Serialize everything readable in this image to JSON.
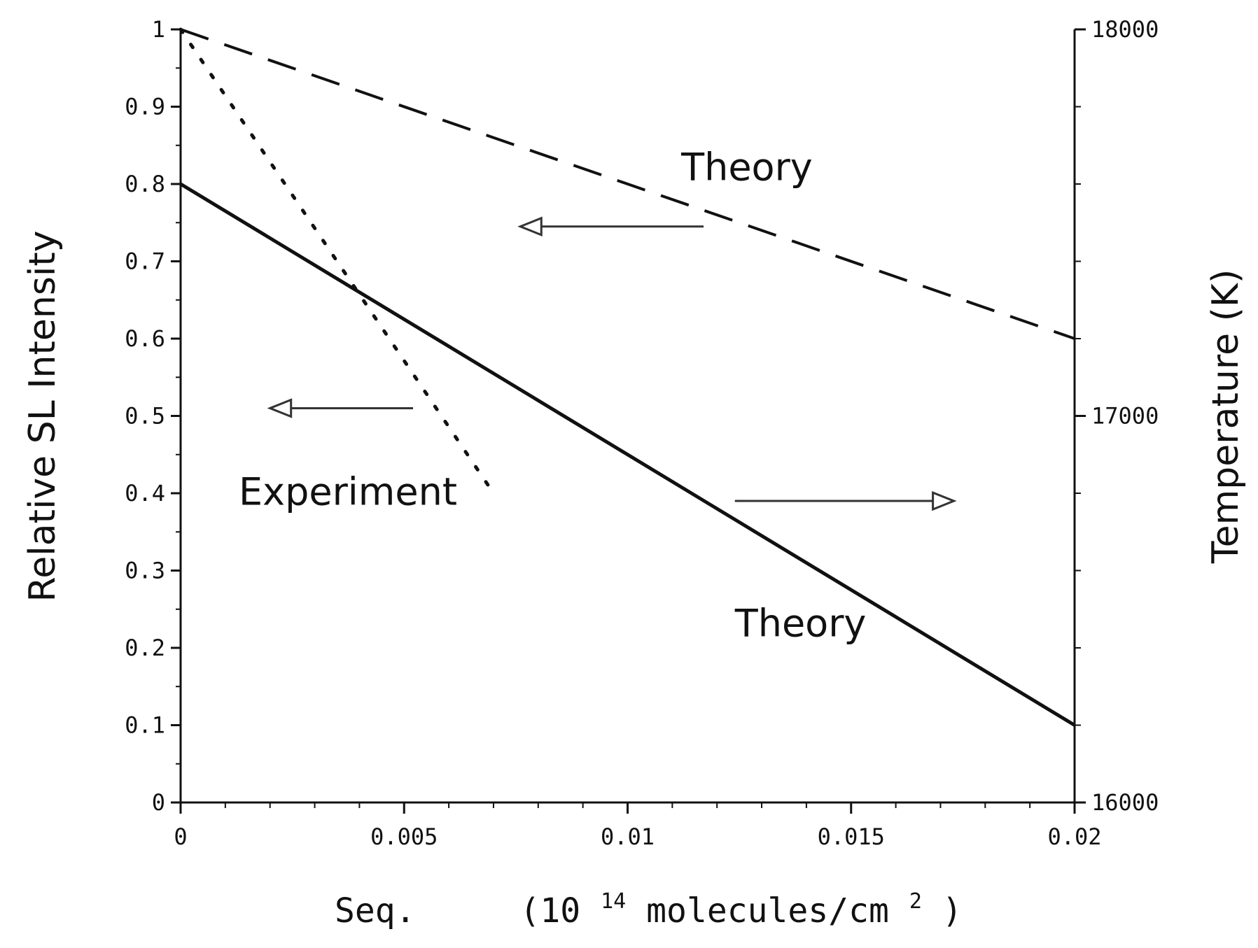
{
  "chart_data": {
    "type": "line",
    "xlabel_main": "Seq.",
    "xlabel_unit_prefix": "(10",
    "xlabel_unit_exp": "14",
    "xlabel_unit_mid": " molecules/cm",
    "xlabel_unit_exp2": "2",
    "xlabel_unit_suffix": ")",
    "ylabel": "Relative SL Intensity",
    "y2label": "Temperature (K)",
    "xlim": [
      0,
      0.02
    ],
    "ylim": [
      0,
      1
    ],
    "y2lim": [
      16000,
      18000
    ],
    "x_ticks": [
      {
        "value": 0,
        "label": "0"
      },
      {
        "value": 0.005,
        "label": "0.005"
      },
      {
        "value": 0.01,
        "label": "0.01"
      },
      {
        "value": 0.015,
        "label": "0.015"
      },
      {
        "value": 0.02,
        "label": "0.02"
      }
    ],
    "y_ticks": [
      {
        "value": 0,
        "label": "0"
      },
      {
        "value": 0.1,
        "label": "0.1"
      },
      {
        "value": 0.2,
        "label": "0.2"
      },
      {
        "value": 0.3,
        "label": "0.3"
      },
      {
        "value": 0.4,
        "label": "0.4"
      },
      {
        "value": 0.5,
        "label": "0.5"
      },
      {
        "value": 0.6,
        "label": "0.6"
      },
      {
        "value": 0.7,
        "label": "0.7"
      },
      {
        "value": 0.8,
        "label": "0.8"
      },
      {
        "value": 0.9,
        "label": "0.9"
      },
      {
        "value": 1,
        "label": "1"
      }
    ],
    "y2_ticks": [
      {
        "value": 16000,
        "label": "16000"
      },
      {
        "value": 17000,
        "label": "17000"
      },
      {
        "value": 18000,
        "label": "18000"
      }
    ],
    "series": [
      {
        "style": "dashed",
        "axis": "left",
        "x": [
          0,
          0.02
        ],
        "y": [
          1.0,
          0.6
        ]
      },
      {
        "style": "dotted",
        "axis": "left",
        "x": [
          0,
          0.007
        ],
        "y": [
          1.0,
          0.4
        ]
      },
      {
        "style": "solid",
        "axis": "right",
        "x": [
          0,
          0.02
        ],
        "y": [
          17600,
          16200
        ]
      }
    ],
    "annotations": [
      {
        "text": "Theory",
        "x": 0.0112,
        "y": 0.805
      },
      {
        "text": "Experiment",
        "x": 0.0013,
        "y": 0.385
      },
      {
        "text": "Theory",
        "x": 0.0124,
        "y": 0.215
      }
    ],
    "arrows": [
      {
        "direction": "left",
        "from": [
          0.0117,
          0.745
        ],
        "to": [
          0.0076,
          0.745
        ]
      },
      {
        "direction": "left",
        "from": [
          0.0052,
          0.51
        ],
        "to": [
          0.002,
          0.51
        ]
      },
      {
        "direction": "right",
        "from": [
          0.0124,
          0.39
        ],
        "to": [
          0.0173,
          0.39
        ]
      }
    ]
  }
}
